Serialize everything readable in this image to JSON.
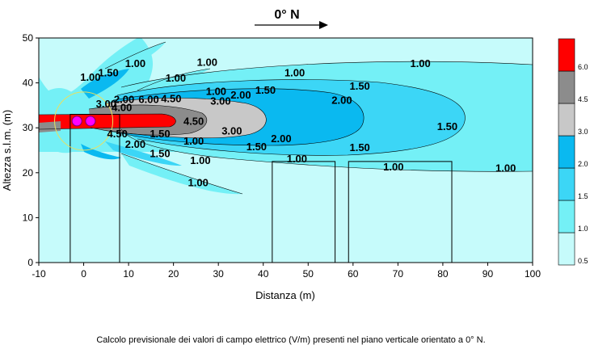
{
  "direction_label": "0° N",
  "caption": "Calcolo previsionale dei valori di campo elettrico (V/m) presenti nel piano verticale orientato a 0° N.",
  "chart_data": {
    "type": "heatmap",
    "title": "",
    "xlabel": "Distanza (m)",
    "ylabel": "Altezza s.l.m. (m)",
    "xlim": [
      -10,
      100
    ],
    "ylim": [
      0,
      50
    ],
    "x_ticks": [
      -10,
      0,
      10,
      20,
      30,
      40,
      50,
      60,
      70,
      80,
      90,
      100
    ],
    "y_ticks": [
      0,
      10,
      20,
      30,
      40,
      50
    ],
    "colors": {
      "below_1_0": "#c6fbfb",
      "1_0_to_1_5": "#74f0f6",
      "1_5_to_2_0": "#3cd6f6",
      "2_0_to_3_0": "#0ab9f0",
      "3_0_to_4_5": "#c8c8c8",
      "4_5_to_6_0": "#8c8c8c",
      "above_6_0": "#ff0000"
    },
    "legend": {
      "placement": "right",
      "bands": [
        {
          "label": "0.5",
          "color": "#c6fbfb"
        },
        {
          "label": "1.0",
          "color": "#74f0f6"
        },
        {
          "label": "1.5",
          "color": "#3cd6f6"
        },
        {
          "label": "2.0",
          "color": "#0ab9f0"
        },
        {
          "label": "3.0",
          "color": "#c8c8c8"
        },
        {
          "label": "4.5",
          "color": "#8c8c8c"
        },
        {
          "label": "6.0",
          "color": "#ff0000"
        }
      ]
    },
    "contour_labels": [
      {
        "text": "1.00",
        "x": 27.5,
        "y": 43.8
      },
      {
        "text": "1.00",
        "x": 1.5,
        "y": 40.5
      },
      {
        "text": "1.00",
        "x": 11.5,
        "y": 43.5
      },
      {
        "text": "1.50",
        "x": 5.5,
        "y": 41.5
      },
      {
        "text": "1.00",
        "x": 20.5,
        "y": 40.3
      },
      {
        "text": "1.00",
        "x": 47,
        "y": 41.5
      },
      {
        "text": "1.00",
        "x": 75,
        "y": 43.5
      },
      {
        "text": "1.00",
        "x": 29.5,
        "y": 37.3
      },
      {
        "text": "2.00",
        "x": 35,
        "y": 36.5
      },
      {
        "text": "1.50",
        "x": 40.5,
        "y": 37.6
      },
      {
        "text": "1.50",
        "x": 61.5,
        "y": 38.5
      },
      {
        "text": "3.00",
        "x": 5,
        "y": 34.5
      },
      {
        "text": "2.00",
        "x": 9,
        "y": 35.5
      },
      {
        "text": "6.00",
        "x": 14.5,
        "y": 35.5
      },
      {
        "text": "4.50",
        "x": 19.5,
        "y": 35.7
      },
      {
        "text": "3.00",
        "x": 30.5,
        "y": 35.2
      },
      {
        "text": "2.00",
        "x": 57.5,
        "y": 35.3
      },
      {
        "text": "4.00",
        "x": 8.5,
        "y": 33.7
      },
      {
        "text": "4.50",
        "x": 24.5,
        "y": 30.7
      },
      {
        "text": "3.00",
        "x": 33,
        "y": 28.5
      },
      {
        "text": "1.50",
        "x": 81,
        "y": 29.5
      },
      {
        "text": "4.50",
        "x": 7.5,
        "y": 27.9
      },
      {
        "text": "1.50",
        "x": 17,
        "y": 27.9
      },
      {
        "text": "1.00",
        "x": 24.5,
        "y": 26.3
      },
      {
        "text": "2.00",
        "x": 44,
        "y": 26.8
      },
      {
        "text": "2.00",
        "x": 11.5,
        "y": 25.5
      },
      {
        "text": "1.50",
        "x": 38.5,
        "y": 25
      },
      {
        "text": "1.50",
        "x": 61.5,
        "y": 24.8
      },
      {
        "text": "1.50",
        "x": 17,
        "y": 23.5
      },
      {
        "text": "1.00",
        "x": 26,
        "y": 21.9
      },
      {
        "text": "1.00",
        "x": 47.5,
        "y": 22.3
      },
      {
        "text": "1.00",
        "x": 69,
        "y": 20.5
      },
      {
        "text": "1.00",
        "x": 94,
        "y": 20.2
      },
      {
        "text": "1.00",
        "x": 25.5,
        "y": 17
      }
    ],
    "buildings": [
      {
        "x1": -3,
        "x2": 8,
        "y_top": 33
      },
      {
        "x1": 42,
        "x2": 56,
        "y_top": 22.5
      },
      {
        "x1": 59,
        "x2": 82,
        "y_top": 22.5
      }
    ],
    "sources": [
      {
        "x": -1.5,
        "y": 31.5
      },
      {
        "x": 1.5,
        "y": 31.5
      }
    ]
  }
}
